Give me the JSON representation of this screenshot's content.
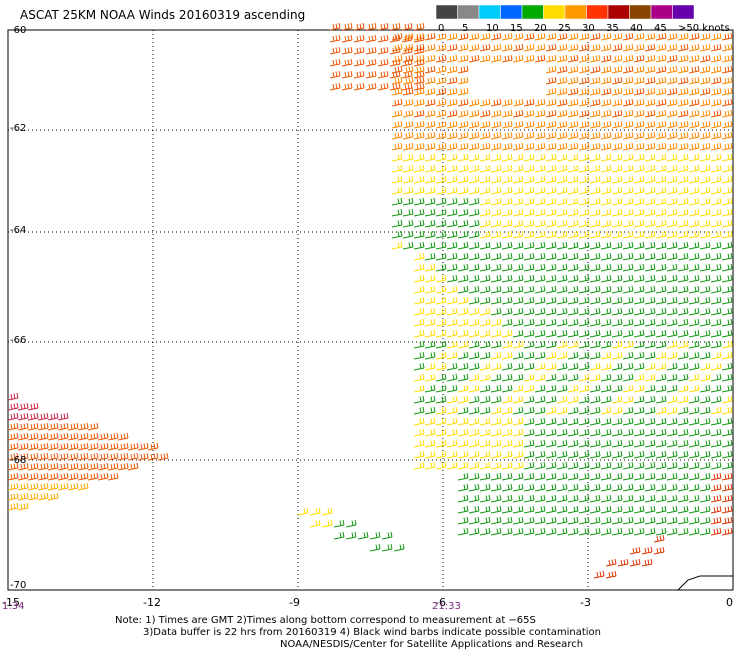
{
  "title": "ASCAT 25KM NOAA Winds 20160319 ascending",
  "scale": {
    "ticks": [
      "0",
      "5",
      "10",
      "15",
      "20",
      "25",
      "30",
      "35",
      "40",
      "45",
      ">50 knots"
    ],
    "colors": [
      "#444444",
      "#888888",
      "#00ccff",
      "#0066ff",
      "#00aa00",
      "#ffdd00",
      "#ff9900",
      "#ff3300",
      "#aa0000",
      "#884400",
      "#aa0088",
      "#6600aa"
    ]
  },
  "axes": {
    "lat_labels": [
      "-60",
      "-62",
      "-64",
      "-66",
      "-68",
      "-70"
    ],
    "lon_labels": [
      "-15",
      "-12",
      "-9",
      "-6",
      "-3",
      "0"
    ]
  },
  "times": [
    "1:34",
    "21:33"
  ],
  "notes": [
    "Note: 1) Times are GMT 2)Times along bottom correspond to measurement at −65S",
    "3)Data buffer is 22 hrs from 20160319 4) Black wind barbs indicate possible contamination",
    "NOAA/NESDIS/Center for Satellite Applications and Research"
  ]
}
